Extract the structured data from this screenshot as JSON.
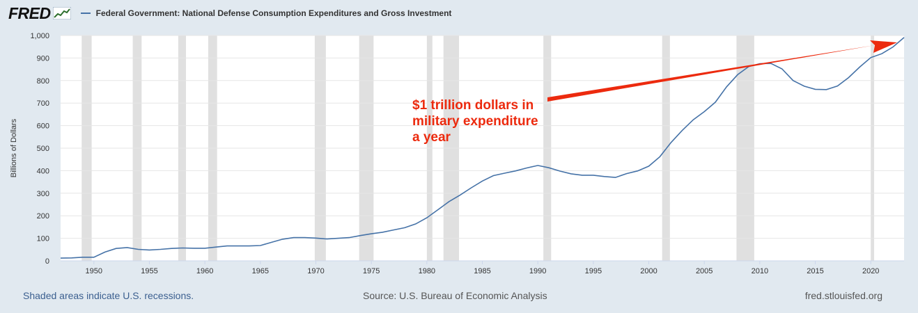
{
  "header": {
    "logo": "FRED",
    "series_title": "Federal Government: National Defense Consumption Expenditures and Gross Investment"
  },
  "footer": {
    "recession_note": "Shaded areas indicate U.S. recessions.",
    "source": "Source: U.S. Bureau of Economic Analysis",
    "site": "fred.stlouisfed.org"
  },
  "annotation": {
    "lines": [
      "$1 trillion dollars in",
      "military expenditure",
      "a year"
    ],
    "color": "#ec2a0e"
  },
  "colors": {
    "line": "#4572a7",
    "background": "#e1e9f0",
    "plot_bg": "#ffffff",
    "recession": "#e0e0e0"
  },
  "chart_data": {
    "type": "line",
    "title": "Federal Government: National Defense Consumption Expenditures and Gross Investment",
    "xlabel": "",
    "ylabel": "Billions of Dollars",
    "xlim": [
      1947,
      2023
    ],
    "ylim": [
      0,
      1000
    ],
    "y_ticks": [
      0,
      100,
      200,
      300,
      400,
      500,
      600,
      700,
      800,
      900,
      1000
    ],
    "y_tick_labels": [
      "0",
      "100",
      "200",
      "300",
      "400",
      "500",
      "600",
      "700",
      "800",
      "900",
      "1,000"
    ],
    "x_ticks": [
      1950,
      1955,
      1960,
      1965,
      1970,
      1975,
      1980,
      1985,
      1990,
      1995,
      2000,
      2005,
      2010,
      2015,
      2020
    ],
    "recessions": [
      [
        1948.9,
        1949.8
      ],
      [
        1953.5,
        1954.3
      ],
      [
        1957.6,
        1958.3
      ],
      [
        1960.3,
        1961.1
      ],
      [
        1969.9,
        1970.9
      ],
      [
        1973.9,
        1975.2
      ],
      [
        1980.0,
        1980.5
      ],
      [
        1981.5,
        1982.9
      ],
      [
        1990.5,
        1991.2
      ],
      [
        2001.2,
        2001.9
      ],
      [
        2007.9,
        2009.5
      ],
      [
        2020.0,
        2020.3
      ]
    ],
    "series": [
      {
        "name": "Federal Government: National Defense Consumption Expenditures and Gross Investment",
        "x": [
          1947,
          1948,
          1949,
          1950,
          1951,
          1952,
          1953,
          1954,
          1955,
          1956,
          1957,
          1958,
          1959,
          1960,
          1961,
          1962,
          1963,
          1964,
          1965,
          1966,
          1967,
          1968,
          1969,
          1970,
          1971,
          1972,
          1973,
          1974,
          1975,
          1976,
          1977,
          1978,
          1979,
          1980,
          1981,
          1982,
          1983,
          1984,
          1985,
          1986,
          1987,
          1988,
          1989,
          1990,
          1991,
          1992,
          1993,
          1994,
          1995,
          1996,
          1997,
          1998,
          1999,
          2000,
          2001,
          2002,
          2003,
          2004,
          2005,
          2006,
          2007,
          2008,
          2009,
          2010,
          2011,
          2012,
          2013,
          2014,
          2015,
          2016,
          2017,
          2018,
          2019,
          2020,
          2021,
          2022,
          2023
        ],
        "values": [
          12,
          13,
          16,
          16,
          39,
          55,
          59,
          51,
          48,
          51,
          55,
          57,
          56,
          56,
          61,
          66,
          66,
          66,
          68,
          82,
          96,
          103,
          103,
          101,
          97,
          100,
          103,
          112,
          120,
          127,
          137,
          147,
          164,
          191,
          227,
          263,
          292,
          324,
          354,
          378,
          389,
          399,
          412,
          423,
          413,
          398,
          386,
          380,
          380,
          374,
          370,
          387,
          399,
          420,
          462,
          525,
          578,
          626,
          662,
          704,
          772,
          826,
          862,
          875,
          876,
          852,
          800,
          775,
          761,
          760,
          776,
          813,
          860,
          902,
          919,
          949,
          991
        ]
      }
    ]
  }
}
